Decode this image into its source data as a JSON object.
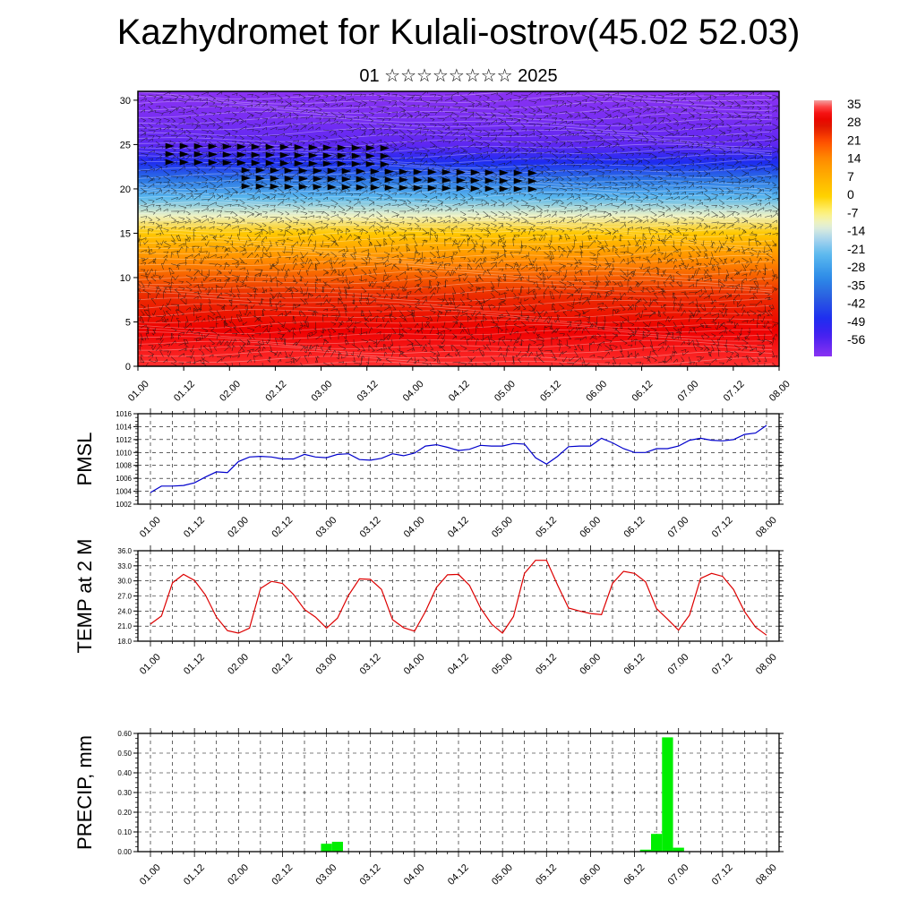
{
  "title": "Kazhydromet for Kulali-ostrov(45.02 52.03)",
  "subtitle": "01 ☆☆☆☆☆☆☆☆ 2025",
  "chart_data": [
    {
      "type": "heatmap",
      "name": "cross-section",
      "x_labels": [
        "01.00",
        "01.12",
        "02.00",
        "02.12",
        "03.00",
        "03.12",
        "04.00",
        "04.12",
        "05.00",
        "05.12",
        "06.00",
        "06.12",
        "07.00",
        "07.12",
        "08.00"
      ],
      "y_ticks": [
        "0",
        "5",
        "10",
        "15",
        "20",
        "25",
        "30"
      ],
      "ylim": [
        0,
        31
      ],
      "colorbar_labels": [
        "35",
        "28",
        "21",
        "14",
        "7",
        "0",
        "-7",
        "-14",
        "-21",
        "-28",
        "-35",
        "-42",
        "-49",
        "-56"
      ],
      "colors": {
        "hot": "#dd0000",
        "warm": "#ff8800",
        "mild": "#ffcc00",
        "cool": "#99ccee",
        "cold": "#2266dd",
        "coldest": "#7a2bf0"
      },
      "level_temps": [
        [
          0,
          33
        ],
        [
          4,
          30
        ],
        [
          8,
          24
        ],
        [
          12,
          14
        ],
        [
          15,
          2
        ],
        [
          17,
          -10
        ],
        [
          19,
          -22
        ],
        [
          21,
          -34
        ],
        [
          23,
          -46
        ],
        [
          25,
          -55
        ],
        [
          28,
          -58
        ],
        [
          31,
          -60
        ]
      ]
    },
    {
      "type": "line",
      "name": "pmsl",
      "ylabel": "PMSL",
      "y_ticks": [
        "1002",
        "1004",
        "1006",
        "1008",
        "1010",
        "1012",
        "1014",
        "1016"
      ],
      "ylim": [
        1002,
        1016
      ],
      "x_labels": [
        "01.00",
        "01.12",
        "02.00",
        "02.12",
        "03.00",
        "03.12",
        "04.00",
        "04.12",
        "05.00",
        "05.12",
        "06.00",
        "06.12",
        "07.00",
        "07.12",
        "08.00"
      ],
      "color": "#0000cc",
      "values": [
        1003.8,
        1004.8,
        1004.8,
        1004.9,
        1005.3,
        1006.2,
        1007.0,
        1006.9,
        1008.6,
        1009.3,
        1009.4,
        1009.3,
        1009.0,
        1009.0,
        1009.7,
        1009.3,
        1009.2,
        1009.7,
        1009.8,
        1008.9,
        1008.8,
        1009.1,
        1009.8,
        1009.5,
        1009.9,
        1011.0,
        1011.2,
        1010.8,
        1010.3,
        1010.5,
        1011.1,
        1011.0,
        1011.0,
        1011.4,
        1011.3,
        1009.2,
        1008.2,
        1009.4,
        1010.9,
        1011.0,
        1011.0,
        1012.2,
        1011.5,
        1010.6,
        1010.0,
        1010.0,
        1010.6,
        1010.6,
        1011.0,
        1011.9,
        1012.2,
        1011.9,
        1011.8,
        1012.0,
        1012.8,
        1013.0,
        1014.2
      ]
    },
    {
      "type": "line",
      "name": "temp",
      "ylabel": "TEMP at 2 M",
      "y_ticks": [
        "18.0",
        "21.0",
        "24.0",
        "27.0",
        "30.0",
        "33.0",
        "36.0"
      ],
      "ylim": [
        18,
        36
      ],
      "x_labels": [
        "01.00",
        "01.12",
        "02.00",
        "02.12",
        "03.00",
        "03.12",
        "04.00",
        "04.12",
        "05.00",
        "05.12",
        "06.00",
        "06.12",
        "07.00",
        "07.12",
        "08.00"
      ],
      "color": "#dd0000",
      "values": [
        21.4,
        23.0,
        29.6,
        31.3,
        30.1,
        27.2,
        22.8,
        20.1,
        19.6,
        20.6,
        28.5,
        29.9,
        29.5,
        27.3,
        24.3,
        22.8,
        20.6,
        22.6,
        27.1,
        30.4,
        30.3,
        28.3,
        22.3,
        20.7,
        20.0,
        23.9,
        28.7,
        31.2,
        31.3,
        29.1,
        24.6,
        21.4,
        19.6,
        22.9,
        31.5,
        34.1,
        34.1,
        29.2,
        24.6,
        24.0,
        23.5,
        23.3,
        29.5,
        31.9,
        31.5,
        29.8,
        24.5,
        22.4,
        20.2,
        23.2,
        30.5,
        31.5,
        30.9,
        28.3,
        23.9,
        20.8,
        19.2
      ]
    },
    {
      "type": "bar",
      "name": "precip",
      "ylabel": "PRECIP, mm",
      "y_ticks": [
        "0.00",
        "0.10",
        "0.20",
        "0.30",
        "0.40",
        "0.50",
        "0.60"
      ],
      "ylim": [
        0,
        0.6
      ],
      "x_labels": [
        "01.00",
        "01.12",
        "02.00",
        "02.12",
        "03.00",
        "03.12",
        "04.00",
        "04.12",
        "05.00",
        "05.12",
        "06.00",
        "06.12",
        "07.00",
        "07.12",
        "08.00"
      ],
      "color": "#00ee00",
      "bars": [
        {
          "t": 16,
          "value": 0.04
        },
        {
          "t": 17,
          "value": 0.05
        },
        {
          "t": 45,
          "value": 0.01
        },
        {
          "t": 46,
          "value": 0.09
        },
        {
          "t": 47,
          "value": 0.58
        },
        {
          "t": 48,
          "value": 0.02
        }
      ]
    }
  ]
}
